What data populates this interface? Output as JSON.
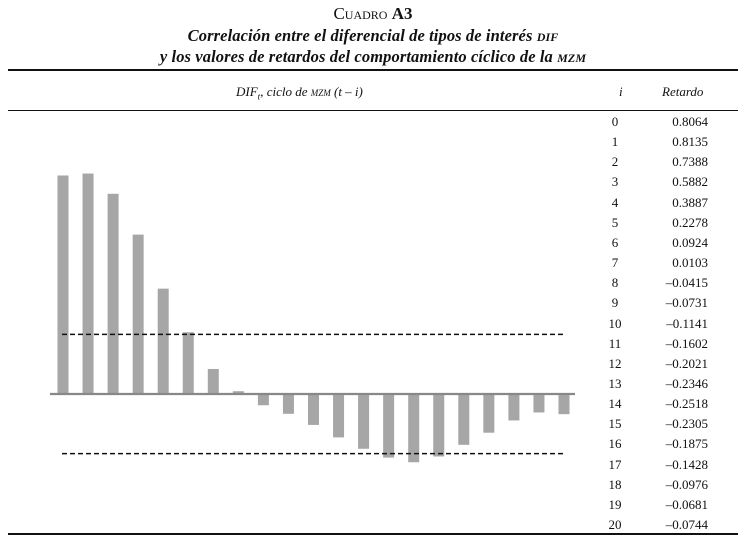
{
  "table": {
    "label": "Cuadro",
    "number": "A3",
    "title_line1_prefix": "Correlación entre el diferencial de tipos de interés ",
    "title_line1_acronym": "dif",
    "title_line2_prefix": "y los valores de retardos del comportamiento cíclico de la ",
    "title_line2_acronym": "mzm",
    "header_dif_prefix": "DIF",
    "header_dif_sub": "t",
    "header_dif_mid": ", ciclo de ",
    "header_dif_acronym": "mzm",
    "header_dif_suffix": " (t – i)",
    "header_i": "i",
    "header_retardo": "Retardo"
  },
  "rows": [
    {
      "i": "0",
      "retardo": "0.8064"
    },
    {
      "i": "1",
      "retardo": "0.8135"
    },
    {
      "i": "2",
      "retardo": "0.7388"
    },
    {
      "i": "3",
      "retardo": "0.5882"
    },
    {
      "i": "4",
      "retardo": "0.3887"
    },
    {
      "i": "5",
      "retardo": "0.2278"
    },
    {
      "i": "6",
      "retardo": "0.0924"
    },
    {
      "i": "7",
      "retardo": "0.0103"
    },
    {
      "i": "8",
      "retardo": "–0.0415"
    },
    {
      "i": "9",
      "retardo": "–0.0731"
    },
    {
      "i": "10",
      "retardo": "–0.1141"
    },
    {
      "i": "11",
      "retardo": "–0.1602"
    },
    {
      "i": "12",
      "retardo": "–0.2021"
    },
    {
      "i": "13",
      "retardo": "–0.2346"
    },
    {
      "i": "14",
      "retardo": "–0.2518"
    },
    {
      "i": "15",
      "retardo": "–0.2305"
    },
    {
      "i": "16",
      "retardo": "–0.1875"
    },
    {
      "i": "17",
      "retardo": "–0.1428"
    },
    {
      "i": "18",
      "retardo": "–0.0976"
    },
    {
      "i": "19",
      "retardo": "–0.0681"
    },
    {
      "i": "20",
      "retardo": "–0.0744"
    }
  ],
  "chart_data": {
    "type": "bar",
    "categories": [
      0,
      1,
      2,
      3,
      4,
      5,
      6,
      7,
      8,
      9,
      10,
      11,
      12,
      13,
      14,
      15,
      16,
      17,
      18,
      19,
      20
    ],
    "values": [
      0.8064,
      0.8135,
      0.7388,
      0.5882,
      0.3887,
      0.2278,
      0.0924,
      0.0103,
      -0.0415,
      -0.0731,
      -0.1141,
      -0.1602,
      -0.2021,
      -0.2346,
      -0.2518,
      -0.2305,
      -0.1875,
      -0.1428,
      -0.0976,
      -0.0681,
      -0.0744
    ],
    "reference_lines": [
      0.22,
      -0.22
    ],
    "grid": false,
    "bar_color": "#a6a6a6",
    "title": "",
    "xlabel": "",
    "ylabel": ""
  }
}
